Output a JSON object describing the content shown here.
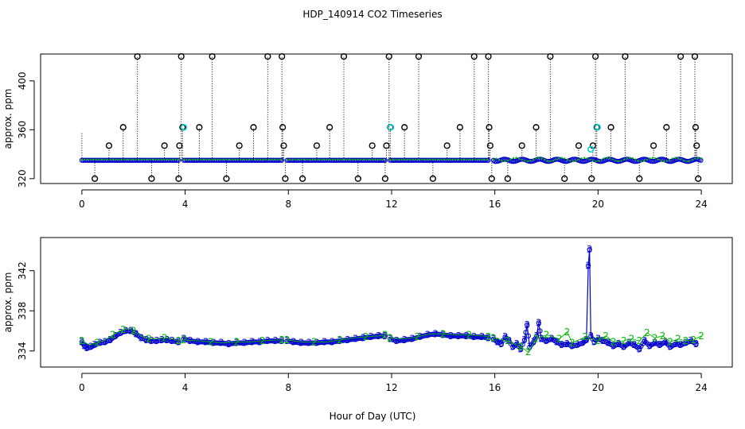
{
  "title": "HDP_140914  CO2 Timeseries",
  "xlabel": "Hour of Day (UTC)",
  "chart_data": [
    {
      "type": "scatter",
      "panel": "top",
      "ylabel": "approx. ppm",
      "xlim": [
        -1.6,
        25.2
      ],
      "ylim": [
        316,
        422
      ],
      "x_ticks": [
        0,
        4,
        8,
        12,
        16,
        20,
        24
      ],
      "y_ticks": [
        320,
        360,
        400
      ],
      "grid": false,
      "colors": {
        "raw": "#000000",
        "filtered": "#0000cc",
        "alt": "#00bb00",
        "cyan": "#00d0d0"
      },
      "outlier_spikes": [
        {
          "x": 0.0,
          "y": 358,
          "marker": false
        },
        {
          "x": 0.5,
          "y": 320
        },
        {
          "x": 1.05,
          "y": 347
        },
        {
          "x": 1.6,
          "y": 362
        },
        {
          "x": 2.15,
          "y": 420
        },
        {
          "x": 2.7,
          "y": 320
        },
        {
          "x": 3.2,
          "y": 347
        },
        {
          "x": 3.75,
          "y": 320
        },
        {
          "x": 3.78,
          "y": 347
        },
        {
          "x": 3.85,
          "y": 420
        },
        {
          "x": 3.9,
          "y": 362
        },
        {
          "x": 4.55,
          "y": 362
        },
        {
          "x": 5.05,
          "y": 420
        },
        {
          "x": 5.6,
          "y": 320
        },
        {
          "x": 6.1,
          "y": 347
        },
        {
          "x": 6.65,
          "y": 362
        },
        {
          "x": 7.2,
          "y": 420
        },
        {
          "x": 7.75,
          "y": 420
        },
        {
          "x": 7.78,
          "y": 362
        },
        {
          "x": 7.82,
          "y": 347
        },
        {
          "x": 7.88,
          "y": 320
        },
        {
          "x": 8.55,
          "y": 320
        },
        {
          "x": 9.1,
          "y": 347
        },
        {
          "x": 9.6,
          "y": 362
        },
        {
          "x": 10.15,
          "y": 420
        },
        {
          "x": 10.7,
          "y": 320
        },
        {
          "x": 11.25,
          "y": 347
        },
        {
          "x": 11.75,
          "y": 320
        },
        {
          "x": 11.8,
          "y": 347
        },
        {
          "x": 11.9,
          "y": 420
        },
        {
          "x": 11.95,
          "y": 362
        },
        {
          "x": 12.5,
          "y": 362
        },
        {
          "x": 13.05,
          "y": 420
        },
        {
          "x": 13.6,
          "y": 320
        },
        {
          "x": 14.15,
          "y": 347
        },
        {
          "x": 14.65,
          "y": 362
        },
        {
          "x": 15.2,
          "y": 420
        },
        {
          "x": 15.75,
          "y": 420
        },
        {
          "x": 15.78,
          "y": 362
        },
        {
          "x": 15.82,
          "y": 347
        },
        {
          "x": 15.88,
          "y": 320
        },
        {
          "x": 16.5,
          "y": 320
        },
        {
          "x": 17.05,
          "y": 347
        },
        {
          "x": 17.6,
          "y": 362
        },
        {
          "x": 18.15,
          "y": 420
        },
        {
          "x": 18.7,
          "y": 320
        },
        {
          "x": 19.25,
          "y": 347
        },
        {
          "x": 19.75,
          "y": 320
        },
        {
          "x": 19.8,
          "y": 347
        },
        {
          "x": 19.9,
          "y": 420
        },
        {
          "x": 19.95,
          "y": 362
        },
        {
          "x": 20.5,
          "y": 362
        },
        {
          "x": 21.05,
          "y": 420
        },
        {
          "x": 21.6,
          "y": 320
        },
        {
          "x": 22.15,
          "y": 347
        },
        {
          "x": 22.65,
          "y": 362
        },
        {
          "x": 23.2,
          "y": 420
        },
        {
          "x": 23.75,
          "y": 420
        },
        {
          "x": 23.78,
          "y": 362
        },
        {
          "x": 23.82,
          "y": 347
        },
        {
          "x": 23.88,
          "y": 320
        }
      ],
      "cyan_points": [
        {
          "x": 3.95,
          "y": 362
        },
        {
          "x": 11.97,
          "y": 362
        },
        {
          "x": 19.72,
          "y": 344
        },
        {
          "x": 19.98,
          "y": 362
        }
      ],
      "baseline_segments": [
        [
          0.0,
          3.75
        ],
        [
          3.95,
          7.75
        ],
        [
          7.95,
          11.75
        ],
        [
          11.95,
          15.75
        ],
        [
          15.95,
          24.0
        ]
      ],
      "baseline_value": 335
    },
    {
      "type": "line",
      "panel": "bottom",
      "ylabel": "approx. ppm",
      "xlim": [
        -1.6,
        25.2
      ],
      "ylim": [
        332.4,
        345.3
      ],
      "x_ticks": [
        0,
        4,
        8,
        12,
        16,
        20,
        24
      ],
      "y_ticks": [
        334,
        338,
        342
      ],
      "grid": false,
      "series": [
        {
          "marker": "3",
          "color": "#0000cc",
          "segments": [
            [
              [
                0.0,
                334.9
              ],
              [
                0.1,
                334.5
              ],
              [
                0.2,
                334.3
              ],
              [
                0.35,
                334.4
              ],
              [
                0.5,
                334.6
              ],
              [
                0.7,
                334.8
              ],
              [
                0.9,
                334.9
              ],
              [
                1.1,
                335.1
              ],
              [
                1.3,
                335.5
              ],
              [
                1.5,
                335.8
              ],
              [
                1.7,
                336.0
              ],
              [
                1.9,
                336.0
              ],
              [
                2.1,
                335.7
              ],
              [
                2.3,
                335.3
              ],
              [
                2.5,
                335.1
              ],
              [
                2.7,
                335.0
              ],
              [
                2.9,
                335.0
              ],
              [
                3.1,
                335.1
              ],
              [
                3.3,
                335.1
              ],
              [
                3.5,
                335.0
              ],
              [
                3.75,
                334.9
              ]
            ],
            [
              [
                3.95,
                335.2
              ],
              [
                4.2,
                335.0
              ],
              [
                4.5,
                334.9
              ],
              [
                4.8,
                334.9
              ],
              [
                5.1,
                334.8
              ],
              [
                5.4,
                334.8
              ],
              [
                5.7,
                334.7
              ],
              [
                6.0,
                334.8
              ],
              [
                6.3,
                334.8
              ],
              [
                6.6,
                334.9
              ],
              [
                6.9,
                334.9
              ],
              [
                7.2,
                335.0
              ],
              [
                7.5,
                335.0
              ],
              [
                7.75,
                335.0
              ]
            ],
            [
              [
                7.95,
                335.0
              ],
              [
                8.2,
                334.9
              ],
              [
                8.5,
                334.8
              ],
              [
                8.8,
                334.8
              ],
              [
                9.1,
                334.8
              ],
              [
                9.4,
                334.9
              ],
              [
                9.7,
                334.9
              ],
              [
                10.0,
                335.0
              ],
              [
                10.3,
                335.1
              ],
              [
                10.6,
                335.2
              ],
              [
                10.9,
                335.3
              ],
              [
                11.2,
                335.4
              ],
              [
                11.5,
                335.5
              ],
              [
                11.75,
                335.5
              ]
            ],
            [
              [
                11.95,
                335.2
              ],
              [
                12.2,
                335.0
              ],
              [
                12.5,
                335.1
              ],
              [
                12.8,
                335.2
              ],
              [
                13.1,
                335.4
              ],
              [
                13.4,
                335.6
              ],
              [
                13.7,
                335.7
              ],
              [
                14.0,
                335.6
              ],
              [
                14.3,
                335.5
              ],
              [
                14.6,
                335.5
              ],
              [
                14.9,
                335.5
              ],
              [
                15.2,
                335.4
              ],
              [
                15.5,
                335.4
              ],
              [
                15.75,
                335.3
              ]
            ],
            [
              [
                15.95,
                335.2
              ],
              [
                16.1,
                334.9
              ],
              [
                16.25,
                334.7
              ],
              [
                16.4,
                335.4
              ],
              [
                16.55,
                335.0
              ],
              [
                16.7,
                334.4
              ],
              [
                16.85,
                334.7
              ],
              [
                17.0,
                334.2
              ],
              [
                17.15,
                335.1
              ],
              [
                17.25,
                336.6
              ],
              [
                17.35,
                334.4
              ],
              [
                17.5,
                334.9
              ],
              [
                17.62,
                335.5
              ],
              [
                17.7,
                336.8
              ],
              [
                17.8,
                335.2
              ],
              [
                18.0,
                335.0
              ],
              [
                18.2,
                335.2
              ],
              [
                18.4,
                334.9
              ],
              [
                18.6,
                334.6
              ],
              [
                18.8,
                334.7
              ],
              [
                19.0,
                334.5
              ],
              [
                19.2,
                334.6
              ],
              [
                19.4,
                334.8
              ],
              [
                19.55,
                335.1
              ],
              [
                19.62,
                342.5
              ],
              [
                19.67,
                344.1
              ],
              [
                19.72,
                335.5
              ],
              [
                19.85,
                334.9
              ],
              [
                20.0,
                335.2
              ],
              [
                20.2,
                335.0
              ],
              [
                20.4,
                334.8
              ],
              [
                20.6,
                334.5
              ],
              [
                20.8,
                334.7
              ],
              [
                21.0,
                334.4
              ],
              [
                21.2,
                334.8
              ],
              [
                21.4,
                334.6
              ],
              [
                21.6,
                334.2
              ],
              [
                21.8,
                335.0
              ],
              [
                22.0,
                334.5
              ],
              [
                22.2,
                334.8
              ],
              [
                22.4,
                334.6
              ],
              [
                22.6,
                334.9
              ],
              [
                22.8,
                334.4
              ],
              [
                23.0,
                334.7
              ],
              [
                23.2,
                334.6
              ],
              [
                23.4,
                334.8
              ],
              [
                23.6,
                335.0
              ],
              [
                23.8,
                334.7
              ]
            ]
          ]
        },
        {
          "marker": "2",
          "color": "#00bb00",
          "segments": [
            [
              [
                0.0,
                335.0
              ],
              [
                0.3,
                334.6
              ],
              [
                0.6,
                334.8
              ],
              [
                0.9,
                335.1
              ],
              [
                1.2,
                335.6
              ],
              [
                1.4,
                335.9
              ],
              [
                1.6,
                336.1
              ],
              [
                1.8,
                336.2
              ],
              [
                2.0,
                336.0
              ],
              [
                2.3,
                335.5
              ],
              [
                2.6,
                335.2
              ],
              [
                2.9,
                335.2
              ],
              [
                3.2,
                335.3
              ],
              [
                3.5,
                335.2
              ],
              [
                3.75,
                335.0
              ]
            ],
            [
              [
                3.95,
                335.1
              ],
              [
                4.5,
                335.0
              ],
              [
                5.0,
                334.9
              ],
              [
                5.5,
                334.8
              ],
              [
                6.0,
                334.9
              ],
              [
                6.5,
                334.9
              ],
              [
                7.0,
                335.0
              ],
              [
                7.5,
                335.1
              ],
              [
                7.75,
                335.1
              ]
            ],
            [
              [
                7.95,
                335.1
              ],
              [
                8.5,
                334.9
              ],
              [
                9.0,
                334.9
              ],
              [
                9.5,
                334.9
              ],
              [
                10.0,
                335.1
              ],
              [
                10.5,
                335.3
              ],
              [
                11.0,
                335.4
              ],
              [
                11.5,
                335.5
              ],
              [
                11.75,
                335.6
              ]
            ],
            [
              [
                11.95,
                335.3
              ],
              [
                12.5,
                335.2
              ],
              [
                13.0,
                335.4
              ],
              [
                13.5,
                335.7
              ],
              [
                14.0,
                335.7
              ],
              [
                14.5,
                335.6
              ],
              [
                15.0,
                335.6
              ],
              [
                15.5,
                335.5
              ],
              [
                15.75,
                335.4
              ]
            ],
            [
              [
                15.95,
                335.3
              ],
              [
                16.5,
                335.0
              ],
              [
                17.0,
                334.4
              ],
              [
                17.3,
                333.9
              ],
              [
                17.6,
                335.2
              ],
              [
                18.0,
                335.6
              ],
              [
                18.5,
                335.2
              ],
              [
                18.8,
                335.9
              ],
              [
                19.0,
                334.8
              ],
              [
                19.5,
                335.4
              ],
              [
                20.0,
                335.0
              ],
              [
                20.3,
                335.5
              ],
              [
                20.6,
                334.9
              ],
              [
                21.0,
                335.0
              ],
              [
                21.3,
                335.2
              ],
              [
                21.6,
                335.0
              ],
              [
                21.9,
                335.8
              ],
              [
                22.2,
                335.3
              ],
              [
                22.5,
                335.5
              ],
              [
                22.8,
                334.9
              ],
              [
                23.1,
                335.2
              ],
              [
                23.4,
                335.0
              ],
              [
                23.7,
                335.1
              ],
              [
                24.0,
                335.5
              ]
            ]
          ]
        }
      ]
    }
  ]
}
